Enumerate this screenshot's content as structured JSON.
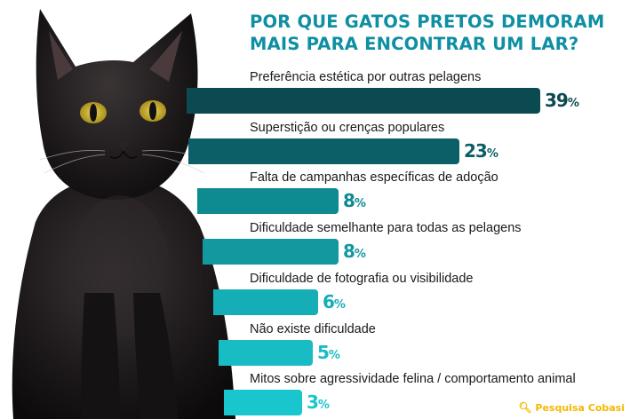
{
  "title_lines": [
    "POR QUE GATOS PRETOS DEMORAM",
    "MAIS PARA ENCONTRAR UM LAR?"
  ],
  "source": "Pesquisa Cobasi",
  "colors": {
    "title": "#0f8fa3",
    "bars": [
      "#0b4a50",
      "#0c5f66",
      "#0e8a91",
      "#1299a0",
      "#15aeb6",
      "#17bcc4",
      "#1ac6ce"
    ]
  },
  "chart_data": {
    "type": "bar",
    "orientation": "horizontal",
    "unit": "%",
    "categories": [
      "Preferência estética por outras pelagens",
      "Superstição ou crenças populares",
      "Falta de campanhas específicas de adoção",
      "Dificuldade semelhante para todas as pelagens",
      "Dificuldade de fotografia ou visibilidade",
      "Não existe dificuldade",
      "Mitos sobre agressividade felina / comportamento animal"
    ],
    "values": [
      39,
      23,
      8,
      8,
      6,
      5,
      3
    ]
  }
}
